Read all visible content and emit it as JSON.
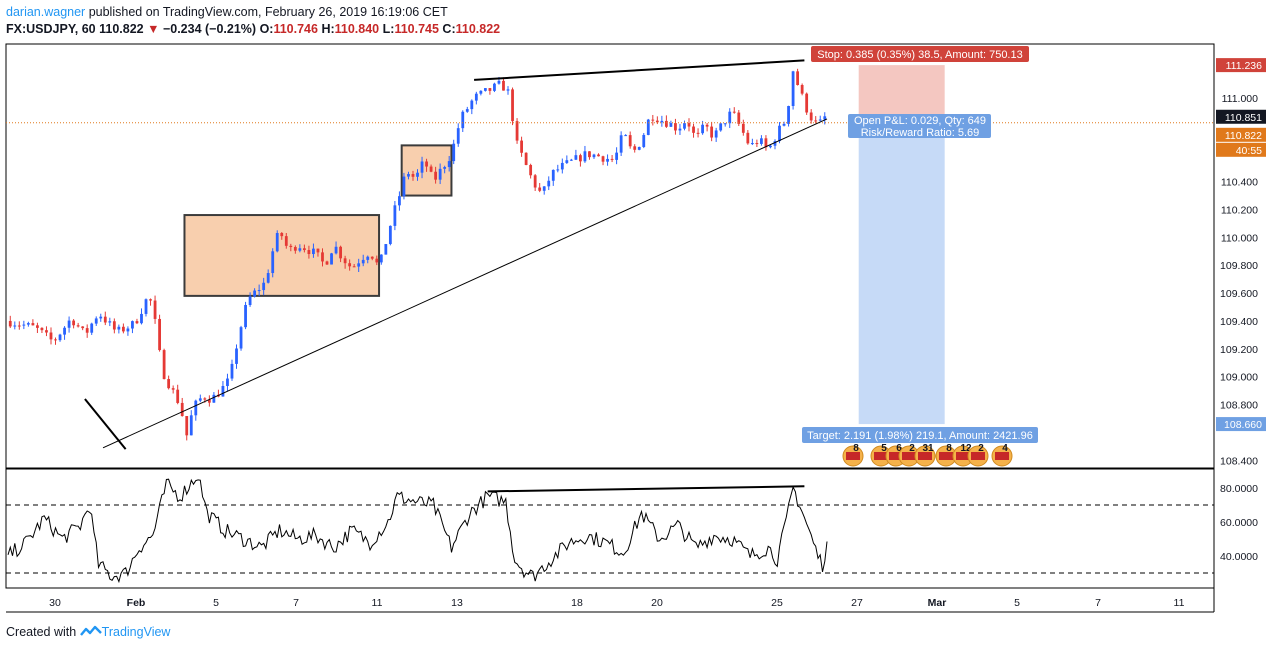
{
  "header": {
    "user": "darian.wagner",
    "published_text": "published on TradingView.com, February 26, 2019 16:19:06 CET",
    "symbol": "FX:USDJPY, 60",
    "last": "110.822",
    "change_arrow": "▼",
    "change": "−0.234 (−0.21%)",
    "open_label": "O:",
    "open": "110.746",
    "high_label": "H:",
    "high": "110.840",
    "low_label": "L:",
    "low": "110.745",
    "close_label": "C:",
    "close": "110.822"
  },
  "footer": {
    "created_with": "Created with",
    "brand": "TradingView",
    "logo_icon": "tradingview-logo-icon"
  },
  "colors": {
    "up": "#2962ff",
    "down": "#e53935",
    "zone_fill": "#f8cfae",
    "zone_stroke": "#3b3b3b",
    "stop_fill": "#f4c7c1",
    "target_fill": "#c6daf7",
    "stop_label": "#d0433a",
    "target_label": "#6fa0e3",
    "price_line": "#e0791b"
  },
  "chart_data": [
    {
      "type": "candlestick",
      "title": "FX:USDJPY, 60",
      "x_tick_labels": [
        "30",
        "Feb",
        "5",
        "7",
        "11",
        "13",
        "18",
        "20",
        "25",
        "27",
        "Mar",
        "5",
        "7",
        "11"
      ],
      "y_tick_labels": [
        "111.000",
        "110.400",
        "110.200",
        "110.000",
        "109.800",
        "109.600",
        "109.400",
        "109.200",
        "109.000",
        "108.800",
        "108.400"
      ],
      "ylim": [
        108.32,
        111.48
      ],
      "grid": false,
      "price_marks": [
        {
          "label": "111.236",
          "value": 111.236,
          "kind": "stop"
        },
        {
          "label": "110.851",
          "value": 110.851,
          "kind": "entry"
        },
        {
          "label": "110.822",
          "value": 110.822,
          "kind": "last"
        },
        {
          "label": "40:55",
          "kind": "countdown"
        },
        {
          "label": "108.660",
          "value": 108.66,
          "kind": "target"
        }
      ],
      "path_points": [
        {
          "x": 0,
          "y": 109.4
        },
        {
          "x": 6,
          "y": 109.35
        },
        {
          "x": 10,
          "y": 109.25
        },
        {
          "x": 14,
          "y": 109.42
        },
        {
          "x": 17,
          "y": 109.3
        },
        {
          "x": 20,
          "y": 109.46
        },
        {
          "x": 24,
          "y": 109.32
        },
        {
          "x": 28,
          "y": 109.38
        },
        {
          "x": 31,
          "y": 109.58
        },
        {
          "x": 32,
          "y": 109.5
        },
        {
          "x": 34,
          "y": 109.05
        },
        {
          "x": 36,
          "y": 108.92
        },
        {
          "x": 38,
          "y": 108.8
        },
        {
          "x": 39.5,
          "y": 108.58
        },
        {
          "x": 41,
          "y": 108.78
        },
        {
          "x": 43,
          "y": 108.86
        },
        {
          "x": 45,
          "y": 108.84
        },
        {
          "x": 47,
          "y": 108.9
        },
        {
          "x": 49,
          "y": 108.98
        },
        {
          "x": 51,
          "y": 109.3
        },
        {
          "x": 53,
          "y": 109.55
        },
        {
          "x": 55,
          "y": 109.62
        },
        {
          "x": 57,
          "y": 109.68
        },
        {
          "x": 58,
          "y": 109.85
        },
        {
          "x": 60,
          "y": 110.05
        },
        {
          "x": 62,
          "y": 109.9
        },
        {
          "x": 64,
          "y": 109.95
        },
        {
          "x": 66,
          "y": 109.92
        },
        {
          "x": 68,
          "y": 109.88
        },
        {
          "x": 70,
          "y": 109.8
        },
        {
          "x": 72,
          "y": 109.95
        },
        {
          "x": 74,
          "y": 109.85
        },
        {
          "x": 76,
          "y": 109.78
        },
        {
          "x": 78,
          "y": 109.85
        },
        {
          "x": 80,
          "y": 109.9
        },
        {
          "x": 82,
          "y": 109.78
        },
        {
          "x": 85,
          "y": 110.15
        },
        {
          "x": 87,
          "y": 110.35
        },
        {
          "x": 88,
          "y": 110.48
        },
        {
          "x": 90,
          "y": 110.42
        },
        {
          "x": 92,
          "y": 110.55
        },
        {
          "x": 94,
          "y": 110.4
        },
        {
          "x": 96,
          "y": 110.5
        },
        {
          "x": 98,
          "y": 110.6
        },
        {
          "x": 100,
          "y": 110.85
        },
        {
          "x": 103,
          "y": 111.0
        },
        {
          "x": 106,
          "y": 111.05
        },
        {
          "x": 109,
          "y": 111.1
        },
        {
          "x": 111,
          "y": 111.02
        },
        {
          "x": 112,
          "y": 110.7
        },
        {
          "x": 114,
          "y": 110.55
        },
        {
          "x": 116,
          "y": 110.4
        },
        {
          "x": 118,
          "y": 110.3
        },
        {
          "x": 120,
          "y": 110.45
        },
        {
          "x": 122,
          "y": 110.5
        },
        {
          "x": 125,
          "y": 110.55
        },
        {
          "x": 128,
          "y": 110.6
        },
        {
          "x": 131,
          "y": 110.58
        },
        {
          "x": 134,
          "y": 110.55
        },
        {
          "x": 136,
          "y": 110.75
        },
        {
          "x": 138,
          "y": 110.6
        },
        {
          "x": 140,
          "y": 110.7
        },
        {
          "x": 142,
          "y": 110.88
        },
        {
          "x": 144,
          "y": 110.85
        },
        {
          "x": 146,
          "y": 110.82
        },
        {
          "x": 148,
          "y": 110.78
        },
        {
          "x": 150,
          "y": 110.85
        },
        {
          "x": 152,
          "y": 110.7
        },
        {
          "x": 154,
          "y": 110.8
        },
        {
          "x": 156,
          "y": 110.72
        },
        {
          "x": 158,
          "y": 110.82
        },
        {
          "x": 160,
          "y": 110.9
        },
        {
          "x": 162,
          "y": 110.78
        },
        {
          "x": 164,
          "y": 110.65
        },
        {
          "x": 166,
          "y": 110.7
        },
        {
          "x": 168,
          "y": 110.62
        },
        {
          "x": 170,
          "y": 110.75
        },
        {
          "x": 172,
          "y": 110.85
        },
        {
          "x": 173.5,
          "y": 111.2
        },
        {
          "x": 175,
          "y": 111.05
        },
        {
          "x": 177,
          "y": 110.88
        },
        {
          "x": 179,
          "y": 110.8
        },
        {
          "x": 180.5,
          "y": 110.86
        },
        {
          "x": 181,
          "y": 110.82
        }
      ],
      "consolidation_zones": [
        {
          "x_start": 39,
          "x_end": 82,
          "y_low": 109.58,
          "y_high": 110.16
        },
        {
          "x_start": 87,
          "x_end": 98,
          "y_low": 110.3,
          "y_high": 110.66
        }
      ],
      "trend_lines": [
        {
          "from": [
            21,
            108.49
          ],
          "to": [
            181,
            110.85
          ],
          "weight": 1
        },
        {
          "from": [
            103,
            111.13
          ],
          "to": [
            176,
            111.27
          ],
          "weight": 2
        },
        {
          "from": [
            17,
            108.84
          ],
          "to": [
            26,
            108.48
          ],
          "weight": 2
        }
      ],
      "position": {
        "x_start": 188,
        "x_end": 207,
        "entry": 110.851,
        "stop": 111.236,
        "target": 108.66,
        "stop_label": "Stop: 0.385 (0.35%) 38.5, Amount: 750.13",
        "pnl_label": "Open P&L: 0.029, Qty: 649",
        "rr_label": "Risk/Reward Ratio: 5.69",
        "target_label": "Target: 2.191 (1.98%) 219.1, Amount: 2421.96"
      },
      "event_badges": [
        "8",
        "5",
        "6",
        "2",
        "31",
        "8",
        "12",
        "2",
        "4"
      ]
    },
    {
      "type": "line",
      "title": "",
      "y_tick_labels": [
        "80.0000",
        "60.0000",
        "40.0000"
      ],
      "ylim": [
        20,
        92
      ],
      "levels": [
        70,
        30
      ],
      "path_points": [
        {
          "x": 0,
          "y": 40
        },
        {
          "x": 4,
          "y": 48
        },
        {
          "x": 8,
          "y": 62
        },
        {
          "x": 12,
          "y": 50
        },
        {
          "x": 16,
          "y": 58
        },
        {
          "x": 18,
          "y": 70
        },
        {
          "x": 20,
          "y": 35
        },
        {
          "x": 23,
          "y": 28
        },
        {
          "x": 26,
          "y": 30
        },
        {
          "x": 29,
          "y": 45
        },
        {
          "x": 32,
          "y": 52
        },
        {
          "x": 35,
          "y": 82
        },
        {
          "x": 38,
          "y": 75
        },
        {
          "x": 42,
          "y": 88
        },
        {
          "x": 44,
          "y": 65
        },
        {
          "x": 48,
          "y": 55
        },
        {
          "x": 52,
          "y": 50
        },
        {
          "x": 56,
          "y": 45
        },
        {
          "x": 60,
          "y": 55
        },
        {
          "x": 64,
          "y": 50
        },
        {
          "x": 68,
          "y": 52
        },
        {
          "x": 72,
          "y": 45
        },
        {
          "x": 76,
          "y": 55
        },
        {
          "x": 80,
          "y": 48
        },
        {
          "x": 84,
          "y": 60
        },
        {
          "x": 86,
          "y": 75
        },
        {
          "x": 90,
          "y": 72
        },
        {
          "x": 94,
          "y": 70
        },
        {
          "x": 98,
          "y": 45
        },
        {
          "x": 102,
          "y": 65
        },
        {
          "x": 106,
          "y": 75
        },
        {
          "x": 110,
          "y": 72
        },
        {
          "x": 112,
          "y": 38
        },
        {
          "x": 114,
          "y": 32
        },
        {
          "x": 116,
          "y": 28
        },
        {
          "x": 120,
          "y": 38
        },
        {
          "x": 124,
          "y": 48
        },
        {
          "x": 128,
          "y": 52
        },
        {
          "x": 132,
          "y": 48
        },
        {
          "x": 136,
          "y": 42
        },
        {
          "x": 140,
          "y": 65
        },
        {
          "x": 144,
          "y": 50
        },
        {
          "x": 148,
          "y": 58
        },
        {
          "x": 152,
          "y": 45
        },
        {
          "x": 156,
          "y": 52
        },
        {
          "x": 160,
          "y": 50
        },
        {
          "x": 164,
          "y": 40
        },
        {
          "x": 168,
          "y": 45
        },
        {
          "x": 170,
          "y": 38
        },
        {
          "x": 172,
          "y": 60
        },
        {
          "x": 173.5,
          "y": 80
        },
        {
          "x": 175,
          "y": 70
        },
        {
          "x": 177,
          "y": 55
        },
        {
          "x": 179,
          "y": 40
        },
        {
          "x": 180,
          "y": 35
        },
        {
          "x": 181,
          "y": 47
        }
      ],
      "trend_lines": [
        {
          "from": [
            106,
            78
          ],
          "to": [
            176,
            81
          ],
          "weight": 2
        }
      ]
    }
  ]
}
